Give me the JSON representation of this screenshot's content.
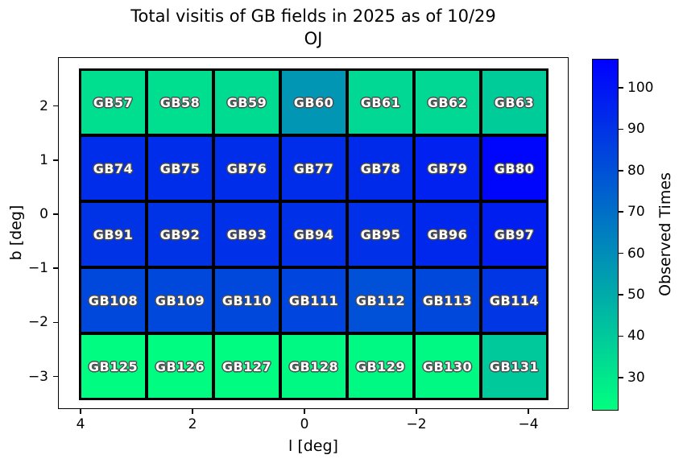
{
  "title": {
    "line1": "Total visitis of GB fields in 2025 as of 10/29",
    "line2": "OJ"
  },
  "axes": {
    "xlabel": "l [deg]",
    "ylabel": "b [deg]",
    "x_ticks": [
      {
        "v": 4,
        "label": "4"
      },
      {
        "v": 2,
        "label": "2"
      },
      {
        "v": 0,
        "label": "0"
      },
      {
        "v": -2,
        "label": "−2"
      },
      {
        "v": -4,
        "label": "−4"
      }
    ],
    "y_ticks": [
      {
        "v": 2,
        "label": "2"
      },
      {
        "v": 1,
        "label": "1"
      },
      {
        "v": 0,
        "label": "0"
      },
      {
        "v": -1,
        "label": "−1"
      },
      {
        "v": -2,
        "label": "−2"
      },
      {
        "v": -3,
        "label": "−3"
      }
    ]
  },
  "colorbar": {
    "label": "Observed Times",
    "vmin": 22,
    "vmax": 107,
    "colormap": "winter_r",
    "bottom_color": "#00FF80",
    "top_color": "#0000FF",
    "ticks": [
      {
        "v": 100,
        "label": "100"
      },
      {
        "v": 90,
        "label": "90"
      },
      {
        "v": 80,
        "label": "80"
      },
      {
        "v": 70,
        "label": "70"
      },
      {
        "v": 60,
        "label": "60"
      },
      {
        "v": 50,
        "label": "50"
      },
      {
        "v": 40,
        "label": "40"
      },
      {
        "v": 30,
        "label": "30"
      }
    ]
  },
  "chart_data": {
    "type": "heatmap",
    "value_name": "Observed Times",
    "x_axis": "l [deg] (inverted, 4 at left to -4 at right)",
    "y_axis": "b [deg] (2.7 at top to -3.5 at bottom)",
    "rows": [
      {
        "cells": [
          {
            "label": "GB57",
            "value": 33
          },
          {
            "label": "GB58",
            "value": 33
          },
          {
            "label": "GB59",
            "value": 34
          },
          {
            "label": "GB60",
            "value": 57
          },
          {
            "label": "GB61",
            "value": 35
          },
          {
            "label": "GB62",
            "value": 35
          },
          {
            "label": "GB63",
            "value": 39
          }
        ]
      },
      {
        "cells": [
          {
            "label": "GB74",
            "value": 92
          },
          {
            "label": "GB75",
            "value": 92
          },
          {
            "label": "GB76",
            "value": 92
          },
          {
            "label": "GB77",
            "value": 92
          },
          {
            "label": "GB78",
            "value": 93
          },
          {
            "label": "GB79",
            "value": 96
          },
          {
            "label": "GB80",
            "value": 105
          }
        ]
      },
      {
        "cells": [
          {
            "label": "GB91",
            "value": 90
          },
          {
            "label": "GB92",
            "value": 90
          },
          {
            "label": "GB93",
            "value": 91
          },
          {
            "label": "GB94",
            "value": 91
          },
          {
            "label": "GB95",
            "value": 91
          },
          {
            "label": "GB96",
            "value": 94
          },
          {
            "label": "GB97",
            "value": 97
          }
        ]
      },
      {
        "cells": [
          {
            "label": "GB108",
            "value": 83
          },
          {
            "label": "GB109",
            "value": 83
          },
          {
            "label": "GB110",
            "value": 83
          },
          {
            "label": "GB111",
            "value": 84
          },
          {
            "label": "GB112",
            "value": 80
          },
          {
            "label": "GB113",
            "value": 83
          },
          {
            "label": "GB114",
            "value": 89
          }
        ]
      },
      {
        "cells": [
          {
            "label": "GB125",
            "value": 23
          },
          {
            "label": "GB126",
            "value": 23
          },
          {
            "label": "GB127",
            "value": 23
          },
          {
            "label": "GB128",
            "value": 24
          },
          {
            "label": "GB129",
            "value": 24
          },
          {
            "label": "GB130",
            "value": 24
          },
          {
            "label": "GB131",
            "value": 40
          }
        ]
      }
    ]
  }
}
